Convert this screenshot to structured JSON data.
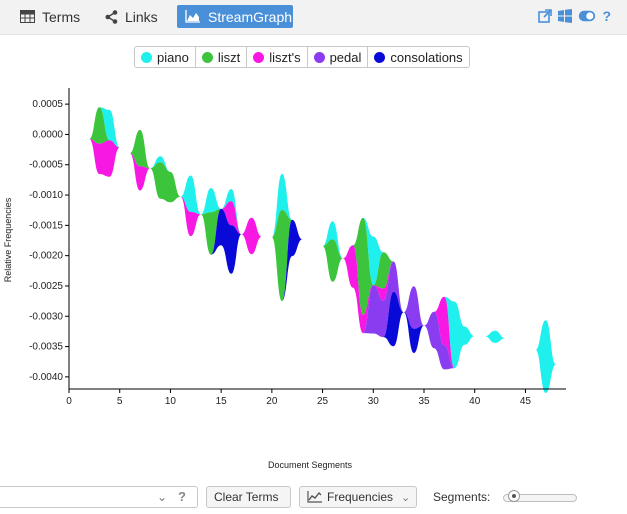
{
  "tabs": [
    {
      "label": "Terms",
      "icon": "table-icon",
      "active": false
    },
    {
      "label": "Links",
      "icon": "share-icon",
      "active": false
    },
    {
      "label": "StreamGraph",
      "icon": "area-chart-icon",
      "active": true
    }
  ],
  "toolbar_icons": [
    "export-icon",
    "windows-icon",
    "toggle-icon",
    "help-icon"
  ],
  "accent_color": "#4a90d9",
  "legend": [
    {
      "label": "piano",
      "color": "#1ff0ee"
    },
    {
      "label": "liszt",
      "color": "#3dc43d"
    },
    {
      "label": "liszt's",
      "color": "#f818e4"
    },
    {
      "label": "pedal",
      "color": "#8a3cf0"
    },
    {
      "label": "consolations",
      "color": "#0a0ad8"
    }
  ],
  "chart_data": {
    "type": "area",
    "subtype": "streamgraph",
    "title": "",
    "xlabel": "Document Segments",
    "ylabel": "Relative Frequencies",
    "xlim": [
      0,
      49
    ],
    "ylim": [
      -0.0042,
      0.0007
    ],
    "xticks": [
      0,
      5,
      10,
      15,
      20,
      25,
      30,
      35,
      40,
      45
    ],
    "yticks": [
      0.0005,
      0.0,
      -0.0005,
      -0.001,
      -0.0015,
      -0.002,
      -0.0025,
      -0.003,
      -0.0035,
      -0.004
    ],
    "ytick_labels": [
      "0.0005",
      "0.0000",
      "-0.0005",
      "-0.0010",
      "-0.0015",
      "-0.0020",
      "-0.0025",
      "-0.0030",
      "-0.0035",
      "-0.0040"
    ],
    "grid": false,
    "legend_position": "top-center",
    "x": [
      1,
      2,
      3,
      4,
      5,
      6,
      7,
      8,
      9,
      10,
      11,
      12,
      13,
      14,
      15,
      16,
      17,
      18,
      19,
      20,
      21,
      22,
      23,
      24,
      25,
      26,
      27,
      28,
      29,
      30,
      31,
      32,
      33,
      34,
      35,
      36,
      37,
      38,
      39,
      40,
      41,
      42,
      43,
      44,
      45,
      46,
      47,
      48
    ],
    "series": [
      {
        "name": "piano",
        "values": [
          0,
          0,
          0,
          0.0005,
          0,
          0,
          0,
          0,
          0.0001,
          0,
          0,
          0.0006,
          0,
          0.0004,
          0,
          0.0002,
          0,
          0,
          0,
          0,
          0.0006,
          0,
          0,
          0,
          0,
          0.0003,
          0,
          0,
          0,
          0.0008,
          0,
          0,
          0,
          0,
          0,
          0,
          0,
          0.0011,
          0.0003,
          0,
          0,
          0.0002,
          0,
          0,
          0,
          0,
          0.0012,
          0
        ]
      },
      {
        "name": "liszt",
        "values": [
          0,
          0,
          0.0006,
          0,
          0,
          0,
          0.0006,
          0,
          0.0006,
          0.0005,
          0,
          0,
          0,
          0.0007,
          0,
          0,
          0,
          0,
          0,
          0,
          0.0015,
          0,
          0,
          0,
          0,
          0.0007,
          0,
          0,
          0.0016,
          0,
          0.0006,
          0,
          0,
          0,
          0,
          0,
          0,
          0,
          0,
          0,
          0,
          0,
          0,
          0,
          0,
          0,
          0,
          0
        ]
      },
      {
        "name": "liszt's",
        "values": [
          0,
          0,
          0.0005,
          0.0006,
          0,
          0,
          0.0004,
          0,
          0,
          0,
          0,
          0.0004,
          0,
          0,
          0,
          0.0004,
          0,
          0.0006,
          0,
          0,
          0,
          0,
          0,
          0,
          0,
          0,
          0,
          0.0007,
          0.0003,
          0,
          0.0002,
          0,
          0,
          0,
          0,
          0,
          0.0008,
          0,
          0,
          0,
          0,
          0,
          0,
          0,
          0,
          0,
          0,
          0
        ]
      },
      {
        "name": "pedal",
        "values": [
          0,
          0,
          0,
          0,
          0,
          0,
          0,
          0,
          0,
          0,
          0,
          0,
          0,
          0,
          0,
          0,
          0,
          0,
          0,
          0,
          0,
          0,
          0,
          0,
          0,
          0,
          0,
          0,
          0,
          0.0008,
          0.0006,
          0.0005,
          0,
          0.0007,
          0,
          0.0006,
          0.0004,
          0,
          0,
          0,
          0,
          0,
          0,
          0,
          0,
          0,
          0,
          0
        ]
      },
      {
        "name": "consolations",
        "values": [
          0,
          0,
          0,
          0,
          0,
          0,
          0,
          0,
          0,
          0,
          0,
          0,
          0,
          0,
          0.0006,
          0.0008,
          0,
          0,
          0,
          0,
          0,
          0.0006,
          0,
          0,
          0,
          0,
          0,
          0,
          0,
          0,
          0,
          0.0009,
          0,
          0.0004,
          0,
          0,
          0,
          0,
          0,
          0,
          0,
          0,
          0,
          0,
          0,
          0,
          0,
          0
        ]
      }
    ]
  },
  "bottom": {
    "search_value": "",
    "clear_terms_label": "Clear Terms",
    "frequencies_label": "Frequencies",
    "segments_label": "Segments:",
    "segments_value_fraction": 0.1
  }
}
